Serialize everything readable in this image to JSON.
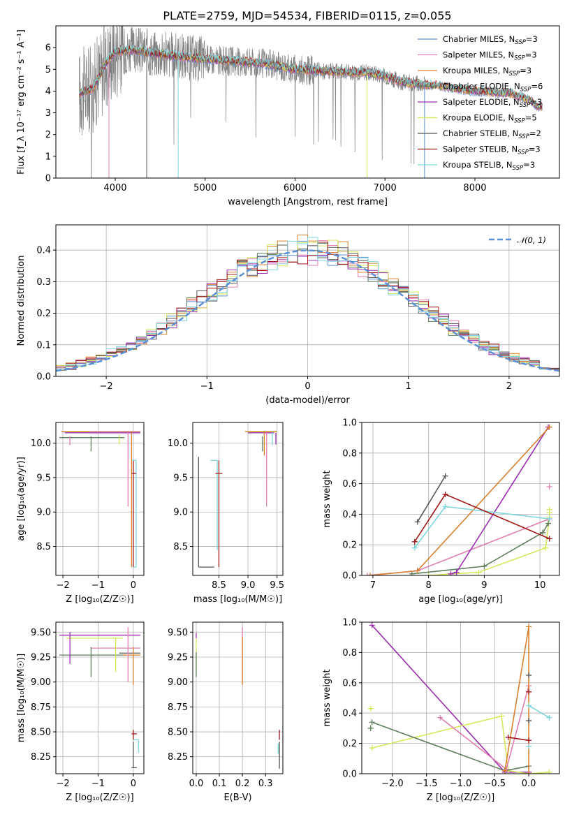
{
  "figure_title": "PLATE=2759, MJD=54534, FIBERID=0115, z=0.055",
  "series": [
    {
      "name": "Chabrier MILES",
      "legend": "Chabrier MILES, N",
      "sub": "SSP",
      "n": "3",
      "color": "#5b8fd6"
    },
    {
      "name": "Salpeter MILES",
      "legend": "Salpeter MILES, N",
      "sub": "SSP",
      "n": "3",
      "color": "#e07fb0"
    },
    {
      "name": "Kroupa MILES",
      "legend": "Kroupa MILES, N",
      "sub": "SSP",
      "n": "3",
      "color": "#d9812f"
    },
    {
      "name": "Chabrier ELODIE",
      "legend": "Chabrier ELODIE, N",
      "sub": "SSP",
      "n": "6",
      "color": "#5e7e5e"
    },
    {
      "name": "Salpeter ELODIE",
      "legend": "Salpeter ELODIE, N",
      "sub": "SSP",
      "n": "3",
      "color": "#9a2fb0"
    },
    {
      "name": "Kroupa ELODIE",
      "legend": "Kroupa ELODIE, N",
      "sub": "SSP",
      "n": "5",
      "color": "#d6e85a"
    },
    {
      "name": "Chabrier STELIB",
      "legend": "Chabrier STELIB, N",
      "sub": "SSP",
      "n": "2",
      "color": "#555555"
    },
    {
      "name": "Salpeter STELIB",
      "legend": "Salpeter STELIB, N",
      "sub": "SSP",
      "n": "3",
      "color": "#a01818"
    },
    {
      "name": "Kroupa STELIB",
      "legend": "Kroupa STELIB, N",
      "sub": "SSP",
      "n": "3",
      "color": "#7fd6dc"
    }
  ],
  "chart_data": [
    {
      "type": "line",
      "id": "spectrum",
      "xlabel": "wavelength [Angstrom, rest frame]",
      "ylabel": "Flux [f_λ 10⁻¹⁷ erg cm⁻² s⁻¹ A⁻¹]",
      "xlim": [
        3340,
        8940
      ],
      "ylim": [
        0,
        7
      ],
      "xticks": [
        4000,
        5000,
        6000,
        7000,
        8000
      ],
      "yticks": [
        0,
        1,
        2,
        3,
        4,
        5,
        6
      ],
      "grid": false,
      "legend_position": "right",
      "data_color": "#808080",
      "continuum_knots": [
        [
          3600,
          3.9
        ],
        [
          3750,
          4.1
        ],
        [
          3900,
          5.3
        ],
        [
          4000,
          5.8
        ],
        [
          4200,
          5.9
        ],
        [
          4500,
          5.7
        ],
        [
          4800,
          5.55
        ],
        [
          5200,
          5.4
        ],
        [
          5600,
          5.3
        ],
        [
          6000,
          5.0
        ],
        [
          6400,
          4.9
        ],
        [
          6800,
          4.85
        ],
        [
          7000,
          4.7
        ],
        [
          7200,
          4.4
        ],
        [
          7400,
          4.3
        ],
        [
          7600,
          4.25
        ],
        [
          7800,
          4.1
        ],
        [
          8000,
          4.0
        ],
        [
          8200,
          3.95
        ],
        [
          8400,
          3.9
        ],
        [
          8600,
          3.6
        ],
        [
          8700,
          3.3
        ]
      ],
      "data_range": [
        3600,
        7440
      ],
      "model_range": [
        3600,
        8750
      ]
    },
    {
      "type": "histogram",
      "id": "residuals",
      "xlabel": "(data-model)/error",
      "ylabel": "Normed distribution",
      "xlim": [
        -2.5,
        2.5
      ],
      "ylim": [
        0,
        0.48
      ],
      "xticks": [
        -2,
        -1,
        0,
        1,
        2
      ],
      "yticks": [
        0,
        0.1,
        0.2,
        0.3,
        0.4
      ],
      "grid": true,
      "legend_label": "𝒩(0, 1)",
      "legend_position": "top-right",
      "normal_color": "#5b8fd6",
      "bin_edges_start": -2.5,
      "bin_width": 0.1,
      "n_bins": 50
    },
    {
      "type": "scatter",
      "id": "age_vs_Z",
      "xlabel": "Z [log₁₀(Z/Z☉)]",
      "ylabel": "age  [log₁₀(age/yr)]",
      "xlim": [
        -2.2,
        0.3
      ],
      "ylim": [
        8.08,
        10.3
      ],
      "xticks": [
        -2,
        -1,
        0
      ],
      "yticks": [
        8.5,
        9.0,
        9.5,
        10.0
      ],
      "grid": true,
      "segments": [
        {
          "s": 2,
          "x1": -2.05,
          "y1": 10.17,
          "x2": 0.2,
          "y2": 10.17
        },
        {
          "s": 5,
          "x1": -1.9,
          "y1": 10.16,
          "x2": 0.2,
          "y2": 10.16
        },
        {
          "s": 4,
          "x1": -1.95,
          "y1": 10.15,
          "x2": 0.2,
          "y2": 10.15
        },
        {
          "s": 1,
          "x1": -1.25,
          "y1": 10.17,
          "x2": 0.2,
          "y2": 10.17
        },
        {
          "s": 3,
          "x1": -2.1,
          "y1": 10.08,
          "x2": -0.25,
          "y2": 10.08
        },
        {
          "s": 1,
          "x1": -1.8,
          "y1": 10.1,
          "x2": -1.8,
          "y2": 9.97
        },
        {
          "s": 3,
          "x1": -1.2,
          "y1": 10.1,
          "x2": -1.2,
          "y2": 9.88
        },
        {
          "s": 5,
          "x1": -0.4,
          "y1": 10.12,
          "x2": -0.4,
          "y2": 9.98
        },
        {
          "s": 1,
          "x1": -0.15,
          "y1": 10.17,
          "x2": -0.15,
          "y2": 9.08
        },
        {
          "s": 2,
          "x1": -0.05,
          "y1": 10.17,
          "x2": -0.05,
          "y2": 8.2
        },
        {
          "s": 7,
          "x1": 0.0,
          "y1": 9.75,
          "x2": 0.0,
          "y2": 8.2
        },
        {
          "s": 8,
          "x1": 0.08,
          "y1": 9.75,
          "x2": 0.08,
          "y2": 8.2
        },
        {
          "s": 8,
          "x1": -0.02,
          "y1": 9.75,
          "x2": 0.08,
          "y2": 9.75
        },
        {
          "s": 8,
          "x1": 0.0,
          "y1": 8.2,
          "x2": 0.08,
          "y2": 8.2
        },
        {
          "s": 7,
          "x1": -0.05,
          "y1": 9.56,
          "x2": 0.08,
          "y2": 9.56
        }
      ]
    },
    {
      "type": "scatter",
      "id": "age_vs_mass",
      "xlabel": "mass [log₁₀(M/M☉)]",
      "ylabel": "",
      "xlim": [
        8.05,
        9.6
      ],
      "ylim": [
        8.08,
        10.3
      ],
      "xticks": [
        8.5,
        9.0,
        9.5
      ],
      "yticks": [
        8.5,
        9.0,
        9.5,
        10.0
      ],
      "grid": true,
      "segments": [
        {
          "s": 6,
          "x1": 8.15,
          "y1": 9.8,
          "x2": 8.15,
          "y2": 8.2
        },
        {
          "s": 6,
          "x1": 8.15,
          "y1": 8.2,
          "x2": 8.42,
          "y2": 8.2
        },
        {
          "s": 8,
          "x1": 8.35,
          "y1": 9.75,
          "x2": 8.47,
          "y2": 9.75
        },
        {
          "s": 8,
          "x1": 8.47,
          "y1": 9.75,
          "x2": 8.47,
          "y2": 8.45
        },
        {
          "s": 7,
          "x1": 8.5,
          "y1": 9.75,
          "x2": 8.5,
          "y2": 8.2
        },
        {
          "s": 7,
          "x1": 8.44,
          "y1": 9.56,
          "x2": 8.56,
          "y2": 9.56
        },
        {
          "s": 2,
          "x1": 8.95,
          "y1": 10.17,
          "x2": 9.5,
          "y2": 10.17
        },
        {
          "s": 5,
          "x1": 9.0,
          "y1": 10.16,
          "x2": 9.48,
          "y2": 10.16
        },
        {
          "s": 4,
          "x1": 9.0,
          "y1": 10.15,
          "x2": 9.45,
          "y2": 10.15
        },
        {
          "s": 1,
          "x1": 9.32,
          "y1": 10.17,
          "x2": 9.32,
          "y2": 9.08
        },
        {
          "s": 2,
          "x1": 9.28,
          "y1": 10.17,
          "x2": 9.28,
          "y2": 9.82
        },
        {
          "s": 3,
          "x1": 9.25,
          "y1": 10.1,
          "x2": 9.25,
          "y2": 9.88
        },
        {
          "s": 4,
          "x1": 9.48,
          "y1": 10.15,
          "x2": 9.48,
          "y2": 9.98
        },
        {
          "s": 8,
          "x1": 9.42,
          "y1": 10.17,
          "x2": 9.42,
          "y2": 9.97
        }
      ]
    },
    {
      "type": "line",
      "id": "mass_weight_vs_age",
      "xlabel": "age  [log₁₀(age/yr)]",
      "ylabel": "mass weight",
      "xlim": [
        6.8,
        10.35
      ],
      "ylim": [
        0,
        1
      ],
      "xticks": [
        7,
        8,
        9,
        10
      ],
      "yticks": [
        0.0,
        0.2,
        0.4,
        0.6,
        0.8,
        1.0
      ],
      "grid": true,
      "lines": [
        {
          "s": 1,
          "pts": [
            [
              6.9,
              0.0
            ],
            [
              7.8,
              0.03
            ],
            [
              10.17,
              0.37
            ]
          ]
        },
        {
          "s": 5,
          "pts": [
            [
              8.0,
              0.0
            ],
            [
              8.9,
              0.02
            ],
            [
              10.1,
              0.18
            ],
            [
              10.17,
              0.38
            ]
          ]
        },
        {
          "s": 3,
          "pts": [
            [
              7.7,
              0.01
            ],
            [
              9.0,
              0.06
            ],
            [
              10.05,
              0.28
            ],
            [
              10.15,
              0.34
            ]
          ]
        },
        {
          "s": 4,
          "pts": [
            [
              8.4,
              0.01
            ],
            [
              8.5,
              0.02
            ],
            [
              10.15,
              0.97
            ]
          ]
        },
        {
          "s": 2,
          "pts": [
            [
              6.95,
              0.0
            ],
            [
              7.8,
              0.03
            ],
            [
              10.17,
              0.97
            ]
          ]
        },
        {
          "s": 8,
          "pts": [
            [
              7.75,
              0.18
            ],
            [
              8.3,
              0.45
            ],
            [
              10.17,
              0.37
            ]
          ]
        },
        {
          "s": 7,
          "pts": [
            [
              7.75,
              0.22
            ],
            [
              8.3,
              0.53
            ],
            [
              10.17,
              0.24
            ]
          ]
        },
        {
          "s": 6,
          "pts": [
            [
              7.8,
              0.35
            ],
            [
              8.3,
              0.65
            ]
          ]
        }
      ],
      "extra_markers": [
        {
          "s": 1,
          "x": 10.17,
          "y": 0.58
        },
        {
          "s": 5,
          "x": 10.17,
          "y": 0.43
        },
        {
          "s": 5,
          "x": 10.17,
          "y": 0.41
        }
      ]
    },
    {
      "type": "scatter",
      "id": "mass_vs_Z",
      "xlabel": "Z [log₁₀(Z/Z☉)]",
      "ylabel": "mass [log₁₀(M/M☉)]",
      "xlim": [
        -2.2,
        0.3
      ],
      "ylim": [
        8.08,
        9.6
      ],
      "xticks": [
        -2,
        -1,
        0
      ],
      "yticks": [
        8.25,
        8.5,
        8.75,
        9.0,
        9.25,
        9.5
      ],
      "grid": true,
      "segments": [
        {
          "s": 4,
          "x1": -2.1,
          "y1": 9.47,
          "x2": 0.2,
          "y2": 9.47
        },
        {
          "s": 5,
          "x1": -1.9,
          "y1": 9.44,
          "x2": -0.3,
          "y2": 9.44
        },
        {
          "s": 1,
          "x1": -1.2,
          "y1": 9.34,
          "x2": 0.2,
          "y2": 9.34
        },
        {
          "s": 3,
          "x1": -2.1,
          "y1": 9.27,
          "x2": -0.2,
          "y2": 9.27
        },
        {
          "s": 6,
          "x1": -0.4,
          "y1": 9.29,
          "x2": 0.2,
          "y2": 9.29
        },
        {
          "s": 2,
          "x1": -0.3,
          "y1": 9.27,
          "x2": 0.2,
          "y2": 9.27
        },
        {
          "s": 4,
          "x1": -1.8,
          "y1": 9.5,
          "x2": -1.8,
          "y2": 9.18
        },
        {
          "s": 3,
          "x1": -1.2,
          "y1": 9.35,
          "x2": -1.2,
          "y2": 9.05
        },
        {
          "s": 5,
          "x1": -0.5,
          "y1": 9.44,
          "x2": -0.5,
          "y2": 9.1
        },
        {
          "s": 1,
          "x1": -0.15,
          "y1": 9.55,
          "x2": -0.15,
          "y2": 9.0
        },
        {
          "s": 2,
          "x1": 0.0,
          "y1": 9.35,
          "x2": 0.0,
          "y2": 8.97
        },
        {
          "s": 7,
          "x1": 0.0,
          "y1": 8.52,
          "x2": 0.0,
          "y2": 8.42
        },
        {
          "s": 7,
          "x1": -0.05,
          "y1": 8.48,
          "x2": 0.1,
          "y2": 8.48
        },
        {
          "s": 8,
          "x1": 0.0,
          "y1": 8.42,
          "x2": 0.15,
          "y2": 8.42
        },
        {
          "s": 8,
          "x1": 0.15,
          "y1": 8.42,
          "x2": 0.15,
          "y2": 8.29
        },
        {
          "s": 6,
          "x1": 0.0,
          "y1": 8.4,
          "x2": 0.0,
          "y2": 8.14
        },
        {
          "s": 6,
          "x1": -0.05,
          "y1": 8.14,
          "x2": 0.1,
          "y2": 8.14
        }
      ]
    },
    {
      "type": "scatter",
      "id": "mass_vs_ebv",
      "xlabel": "E(B-V)",
      "ylabel": "",
      "xlim": [
        -0.015,
        0.375
      ],
      "ylim": [
        8.08,
        9.6
      ],
      "xticks": [
        0.0,
        0.1,
        0.2,
        0.3
      ],
      "yticks": [
        8.25,
        8.5,
        8.75,
        9.0,
        9.25,
        9.5
      ],
      "grid": true,
      "segments": [
        {
          "s": 4,
          "x1": 0.0,
          "y1": 9.49,
          "x2": 0.0,
          "y2": 9.44
        },
        {
          "s": 5,
          "x1": 0.0,
          "y1": 9.44,
          "x2": 0.0,
          "y2": 9.1
        },
        {
          "s": 3,
          "x1": 0.0,
          "y1": 9.3,
          "x2": 0.0,
          "y2": 9.05
        },
        {
          "s": 1,
          "x1": 0.2,
          "y1": 9.55,
          "x2": 0.2,
          "y2": 9.0
        },
        {
          "s": 2,
          "x1": 0.2,
          "y1": 9.45,
          "x2": 0.2,
          "y2": 8.97
        },
        {
          "s": 7,
          "x1": 0.36,
          "y1": 8.52,
          "x2": 0.36,
          "y2": 8.42
        },
        {
          "s": 8,
          "x1": 0.355,
          "y1": 8.38,
          "x2": 0.355,
          "y2": 8.28
        },
        {
          "s": 6,
          "x1": 0.36,
          "y1": 8.4,
          "x2": 0.36,
          "y2": 8.13
        }
      ]
    },
    {
      "type": "line",
      "id": "mass_weight_vs_Z",
      "xlabel": "Z [log₁₀(Z/Z☉)]",
      "ylabel": "mass weight",
      "xlim": [
        -2.45,
        0.45
      ],
      "ylim": [
        0,
        1
      ],
      "xticks": [
        -2.0,
        -1.5,
        -1.0,
        -0.5,
        0.0
      ],
      "yticks": [
        0.0,
        0.2,
        0.4,
        0.6,
        0.8,
        1.0
      ],
      "grid": true,
      "lines": [
        {
          "s": 4,
          "pts": [
            [
              -2.3,
              0.98
            ],
            [
              -0.35,
              0.01
            ],
            [
              0.0,
              0.01
            ]
          ]
        },
        {
          "s": 5,
          "pts": [
            [
              -2.3,
              0.17
            ],
            [
              -0.4,
              0.38
            ],
            [
              -0.3,
              0.02
            ],
            [
              0.0,
              0.0
            ],
            [
              0.3,
              0.01
            ]
          ]
        },
        {
          "s": 3,
          "pts": [
            [
              -2.3,
              0.34
            ],
            [
              -0.35,
              0.02
            ],
            [
              0.0,
              0.05
            ]
          ]
        },
        {
          "s": 1,
          "pts": [
            [
              -1.3,
              0.37
            ],
            [
              -0.33,
              0.03
            ],
            [
              0.0,
              0.58
            ]
          ]
        },
        {
          "s": 2,
          "pts": [
            [
              -0.35,
              0.02
            ],
            [
              0.0,
              0.97
            ],
            [
              0.0,
              0.0
            ]
          ]
        },
        {
          "s": 8,
          "pts": [
            [
              0.0,
              0.45
            ],
            [
              0.3,
              0.37
            ]
          ]
        },
        {
          "s": 7,
          "pts": [
            [
              -0.3,
              0.24
            ],
            [
              0.0,
              0.22
            ]
          ]
        }
      ],
      "extra_markers": [
        {
          "s": 5,
          "x": -2.32,
          "y": 0.43
        },
        {
          "s": 5,
          "x": -2.32,
          "y": 0.3
        },
        {
          "s": 3,
          "x": -2.32,
          "y": 0.3
        },
        {
          "s": 6,
          "x": 0.0,
          "y": 0.65
        },
        {
          "s": 6,
          "x": 0.0,
          "y": 0.35
        },
        {
          "s": 7,
          "x": 0.0,
          "y": 0.54
        },
        {
          "s": 8,
          "x": 0.0,
          "y": 0.18
        }
      ]
    }
  ]
}
